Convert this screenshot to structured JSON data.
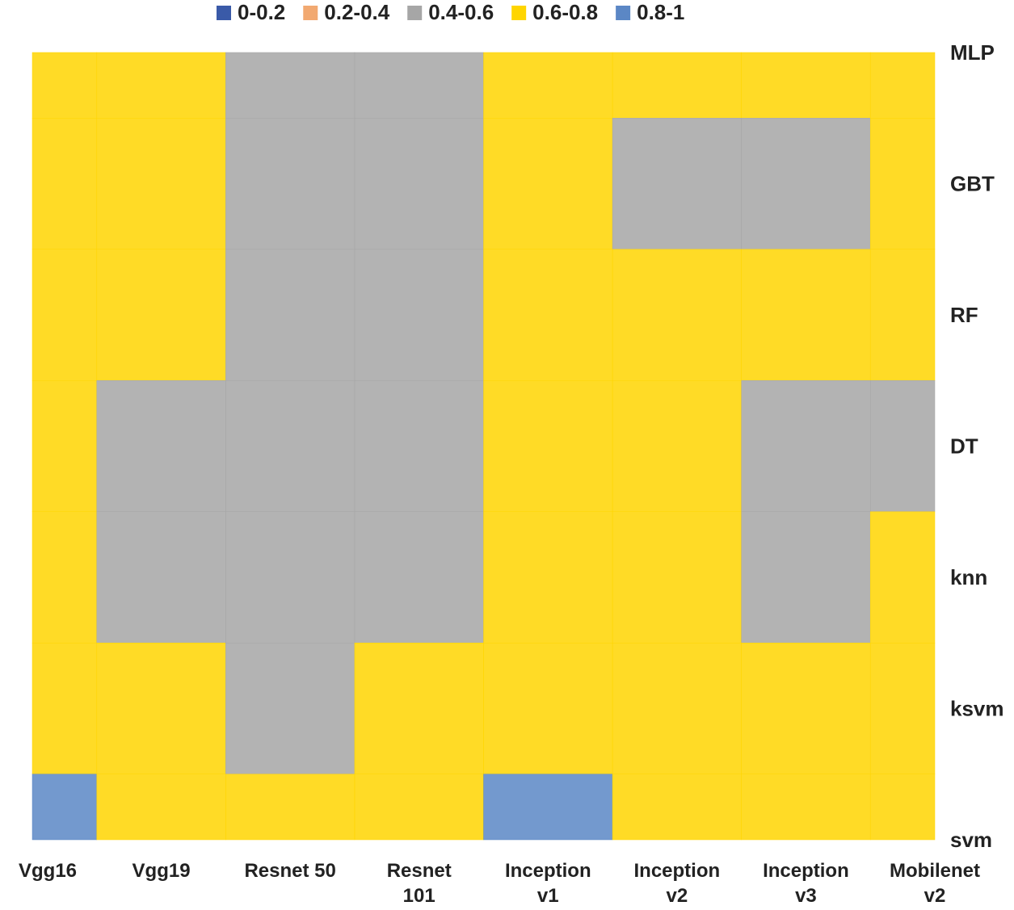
{
  "chart_data": {
    "type": "surface",
    "categories": [
      "Vgg16",
      "Vgg19",
      "Resnet 50",
      "Resnet 101",
      "Inception v1",
      "Inception v2",
      "Inception v3",
      "Mobilenet v2"
    ],
    "rows": [
      "MLP",
      "GBT",
      "RF",
      "DT",
      "knn",
      "ksvm",
      "svm"
    ],
    "levels": [
      0,
      0.2,
      0.4,
      0.6,
      0.8,
      1
    ],
    "series": [
      {
        "name": "0-0.2",
        "color": "#3a5aa8"
      },
      {
        "name": "0.2-0.4",
        "color": "#f2a971"
      },
      {
        "name": "0.4-0.6",
        "color": "#a6a6a6"
      },
      {
        "name": "0.6-0.8",
        "color": "#ffd500"
      },
      {
        "name": "0.8-1",
        "color": "#5b87c5"
      }
    ],
    "values": [
      [
        0.65,
        0.7,
        0.55,
        0.55,
        0.65,
        0.65,
        0.62,
        0.65
      ],
      [
        0.7,
        0.7,
        0.5,
        0.5,
        0.7,
        0.55,
        0.5,
        0.65
      ],
      [
        0.65,
        0.65,
        0.5,
        0.5,
        0.65,
        0.7,
        0.7,
        0.65
      ],
      [
        0.7,
        0.55,
        0.5,
        0.5,
        0.7,
        0.72,
        0.5,
        0.5
      ],
      [
        0.7,
        0.5,
        0.55,
        0.5,
        0.7,
        0.75,
        0.55,
        0.65
      ],
      [
        0.8,
        0.75,
        0.5,
        0.7,
        0.72,
        0.75,
        0.7,
        0.75
      ],
      [
        0.9,
        0.75,
        0.7,
        0.7,
        0.85,
        0.7,
        0.7,
        0.7
      ]
    ]
  }
}
